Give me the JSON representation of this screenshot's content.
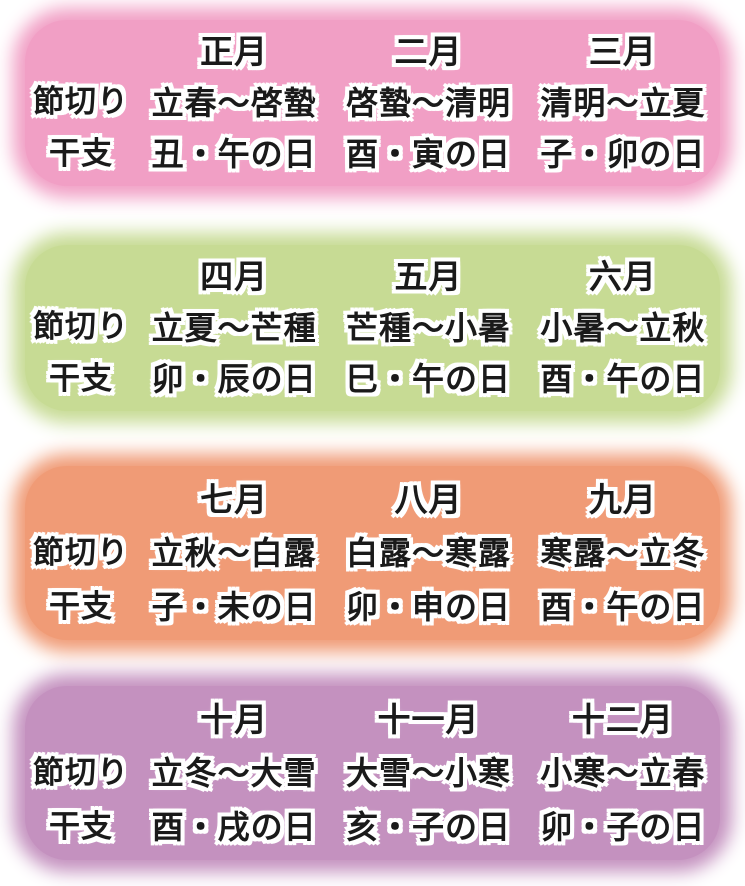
{
  "row_labels": {
    "sekkiri": "節切り",
    "eto": "干支"
  },
  "blocks": [
    {
      "color": "#F19FC5",
      "columns": [
        {
          "month": "正月",
          "sekkiri": "立春～啓蟄",
          "eto": "丑・午の日"
        },
        {
          "month": "二月",
          "sekkiri": "啓蟄～清明",
          "eto": "酉・寅の日"
        },
        {
          "month": "三月",
          "sekkiri": "清明～立夏",
          "eto": "子・卯の日"
        }
      ]
    },
    {
      "color": "#C7DB94",
      "columns": [
        {
          "month": "四月",
          "sekkiri": "立夏～芒種",
          "eto": "卯・辰の日"
        },
        {
          "month": "五月",
          "sekkiri": "芒種～小暑",
          "eto": "巳・午の日"
        },
        {
          "month": "六月",
          "sekkiri": "小暑～立秋",
          "eto": "酉・午の日"
        }
      ]
    },
    {
      "color": "#F09B76",
      "columns": [
        {
          "month": "七月",
          "sekkiri": "立秋～白露",
          "eto": "子・未の日"
        },
        {
          "month": "八月",
          "sekkiri": "白露～寒露",
          "eto": "卯・申の日"
        },
        {
          "month": "九月",
          "sekkiri": "寒露～立冬",
          "eto": "酉・午の日"
        }
      ]
    },
    {
      "color": "#C491BF",
      "columns": [
        {
          "month": "十月",
          "sekkiri": "立冬～大雪",
          "eto": "酉・戌の日"
        },
        {
          "month": "十一月",
          "sekkiri": "大雪～小寒",
          "eto": "亥・子の日"
        },
        {
          "month": "十二月",
          "sekkiri": "小寒～立春",
          "eto": "卯・子の日"
        }
      ]
    }
  ],
  "chart_data": {
    "type": "table",
    "title": "",
    "row_labels": [
      "節切り",
      "干支"
    ],
    "columns": [
      "正月",
      "二月",
      "三月",
      "四月",
      "五月",
      "六月",
      "七月",
      "八月",
      "九月",
      "十月",
      "十一月",
      "十二月"
    ],
    "rows": {
      "節切り": [
        "立春～啓蟄",
        "啓蟄～清明",
        "清明～立夏",
        "立夏～芒種",
        "芒種～小暑",
        "小暑～立秋",
        "立秋～白露",
        "白露～寒露",
        "寒露～立冬",
        "立冬～大雪",
        "大雪～小寒",
        "小寒～立春"
      ],
      "干支": [
        "丑・午の日",
        "酉・寅の日",
        "子・卯の日",
        "卯・辰の日",
        "巳・午の日",
        "酉・午の日",
        "子・未の日",
        "卯・申の日",
        "酉・午の日",
        "酉・戌の日",
        "亥・子の日",
        "卯・子の日"
      ]
    },
    "layout_hints": {
      "grouping": "3 months per colored block, 4 blocks stacked vertically",
      "block_colors": [
        "#F19FC5",
        "#C7DB94",
        "#F09B76",
        "#C491BF"
      ],
      "text_style": "black glyphs with thick white outline",
      "background": "#ffffff"
    }
  }
}
